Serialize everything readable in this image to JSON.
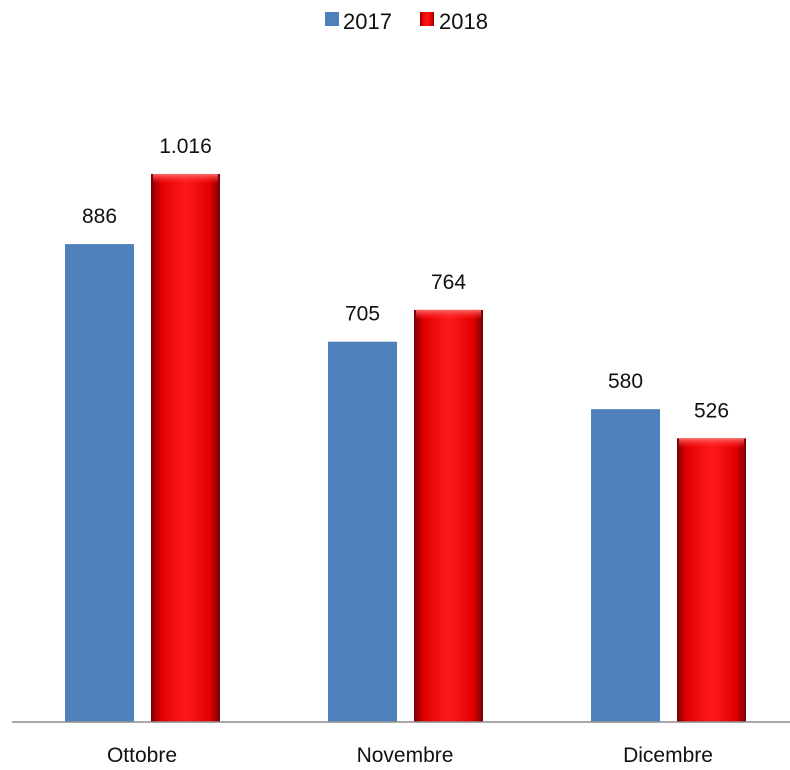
{
  "chart_data": {
    "type": "bar",
    "categories": [
      "Ottobre",
      "Novembre",
      "Dicembre"
    ],
    "series": [
      {
        "name": "2017",
        "values": [
          886,
          705,
          580
        ],
        "labels": [
          "886",
          "705",
          "580"
        ],
        "color": "#4f81bd"
      },
      {
        "name": "2018",
        "values": [
          1016,
          764,
          526
        ],
        "labels": [
          "1.016",
          "764",
          "526"
        ],
        "color": "#ee1111"
      }
    ],
    "title": "",
    "xlabel": "",
    "ylabel": "",
    "ylim": [
      0,
      1200
    ],
    "grid": false,
    "legend_position": "top-center",
    "data_labels": true
  }
}
